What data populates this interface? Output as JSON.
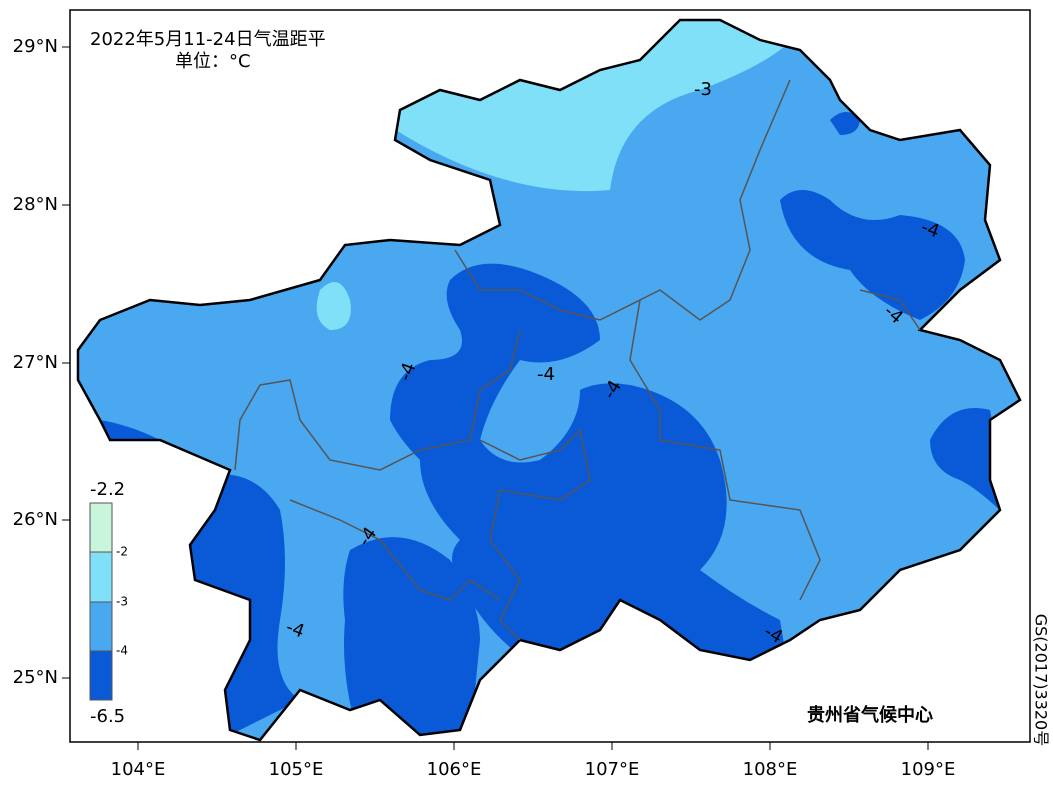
{
  "title": "2022年5月11-24日气温距平",
  "unit": "单位：°C",
  "lat_labels": [
    "29°N",
    "28°N",
    "27°N",
    "26°N",
    "25°N"
  ],
  "lon_labels": [
    "104°E",
    "105°E",
    "106°E",
    "107°E",
    "108°E",
    "109°E"
  ],
  "legend": {
    "max": "-2.2",
    "levels": [
      "-2",
      "-3",
      "-4"
    ],
    "min": "-6.5"
  },
  "contour_labels": [
    "-3",
    "-4",
    "-4",
    "-4",
    "-4",
    "-4",
    "-4",
    "-4",
    "-4"
  ],
  "credit": "贵州省气候中心",
  "map_number": "GS(2017)3320号"
}
